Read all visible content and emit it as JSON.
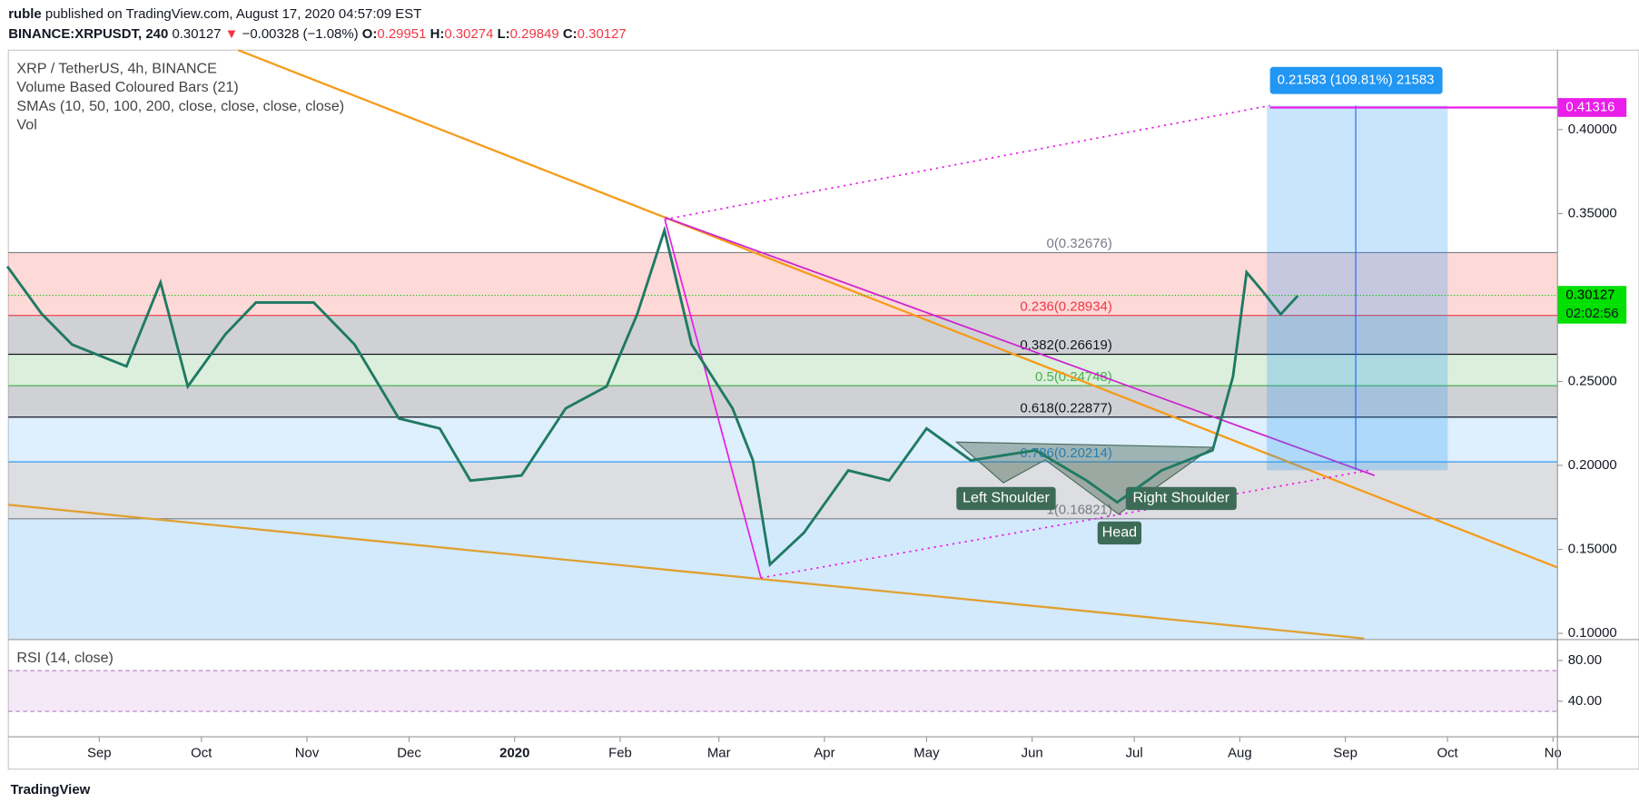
{
  "header": {
    "publisher": "ruble",
    "published": "published on TradingView.com, August 17, 2020 04:57:09 EST",
    "symbol": "BINANCE:XRPUSDT, 240",
    "last": "0.30127",
    "arrow": "▼",
    "change": "−0.00328 (−1.08%)",
    "o_label": "O:",
    "o": "0.29951",
    "h_label": "H:",
    "h": "0.30274",
    "l_label": "L:",
    "l": "0.29849",
    "c_label": "C:",
    "c": "0.30127"
  },
  "legend": [
    "XRP / TetherUS, 4h, BINANCE",
    "Volume Based Coloured Bars (21)",
    "SMAs (10, 50, 100, 200, close, close, close, close)",
    "Vol"
  ],
  "chart_data": {
    "type": "line",
    "x": [
      -27,
      -17,
      -8,
      8,
      18,
      26,
      37,
      46,
      63,
      75,
      88,
      100,
      109,
      124,
      137,
      149,
      158,
      166,
      174,
      186,
      192,
      197,
      207,
      220,
      232,
      243,
      256,
      275,
      290,
      299,
      312,
      327,
      333,
      337,
      342,
      347,
      352
    ],
    "series": [
      {
        "color": "#1f7a63",
        "values": [
          0.3185,
          0.2905,
          0.272,
          0.259,
          0.309,
          0.247,
          0.278,
          0.297,
          0.297,
          0.272,
          0.228,
          0.222,
          0.191,
          0.194,
          0.234,
          0.247,
          0.29,
          0.34,
          0.272,
          0.234,
          0.203,
          0.141,
          0.16,
          0.197,
          0.191,
          0.222,
          0.203,
          0.209,
          0.191,
          0.178,
          0.197,
          0.209,
          0.253,
          0.315,
          0.303,
          0.29,
          0.301
        ]
      }
    ],
    "xlim": [
      -26.7,
      428.3
    ],
    "xticks": [
      {
        "value": 0,
        "label": "Sep"
      },
      {
        "value": 30,
        "label": "Oct"
      },
      {
        "value": 61,
        "label": "Nov"
      },
      {
        "value": 91,
        "label": "Dec"
      },
      {
        "value": 122,
        "label": "2020"
      },
      {
        "value": 153,
        "label": "Feb"
      },
      {
        "value": 182,
        "label": "Mar"
      },
      {
        "value": 213,
        "label": "Apr"
      },
      {
        "value": 243,
        "label": "May"
      },
      {
        "value": 274,
        "label": "Jun"
      },
      {
        "value": 304,
        "label": "Jul"
      },
      {
        "value": 335,
        "label": "Aug"
      },
      {
        "value": 366,
        "label": "Sep"
      },
      {
        "value": 396,
        "label": "Oct"
      },
      {
        "value": 427,
        "label": "No"
      }
    ],
    "ylim": [
      0.0963,
      0.4473
    ],
    "yticks": [
      {
        "value": 0.1,
        "label": "0.10000"
      },
      {
        "value": 0.15,
        "label": "0.15000"
      },
      {
        "value": 0.2,
        "label": "0.20000"
      },
      {
        "value": 0.25,
        "label": "0.25000"
      },
      {
        "value": 0.35,
        "label": "0.35000"
      },
      {
        "value": 0.4,
        "label": "0.40000"
      }
    ],
    "fib": [
      {
        "label": "0(0.32676)",
        "value": 0.32676,
        "color": "#787b86",
        "fill": "rgba(244,67,54,0.2)"
      },
      {
        "label": "0.236(0.28934)",
        "value": 0.28934,
        "color": "#f23645",
        "fill": "rgba(120,123,134,0.35)"
      },
      {
        "label": "0.382(0.26619)",
        "value": 0.26619,
        "color": "#131722",
        "fill": "rgba(76,175,80,0.2)"
      },
      {
        "label": "0.5(0.24748)",
        "value": 0.24748,
        "color": "#4caf50",
        "fill": "rgba(120,123,134,0.35)"
      },
      {
        "label": "0.618(0.22877)",
        "value": 0.22877,
        "color": "#131722",
        "fill": "rgba(33,150,243,0.15)"
      },
      {
        "label": "0.786(0.20214)",
        "value": 0.20214,
        "color": "#2196f3",
        "fill": "rgba(120,123,134,0.25)"
      },
      {
        "label": "1(0.16821)",
        "value": 0.16821,
        "color": "#787b86",
        "fill": "rgba(33,150,243,0.2)"
      }
    ],
    "price_labels": [
      {
        "label": "0.41316",
        "value": 0.41316,
        "color": "#e91ee9"
      },
      {
        "label": "0.30127",
        "value": 0.30127,
        "color": "#00e000"
      }
    ],
    "countdown": "02:02:56",
    "measure": "0.21583 (109.81%) 21583",
    "patterns": [
      "Left Shoulder",
      "Head",
      "Right Shoulder"
    ],
    "rsi": {
      "title": "RSI (14, close)",
      "ylim": [
        5.1,
        100.5
      ],
      "yticks": [
        {
          "value": 80,
          "label": "80.00"
        },
        {
          "value": 40,
          "label": "40.00"
        }
      ],
      "bands": [
        70,
        30
      ]
    }
  },
  "footer": "TradingView"
}
